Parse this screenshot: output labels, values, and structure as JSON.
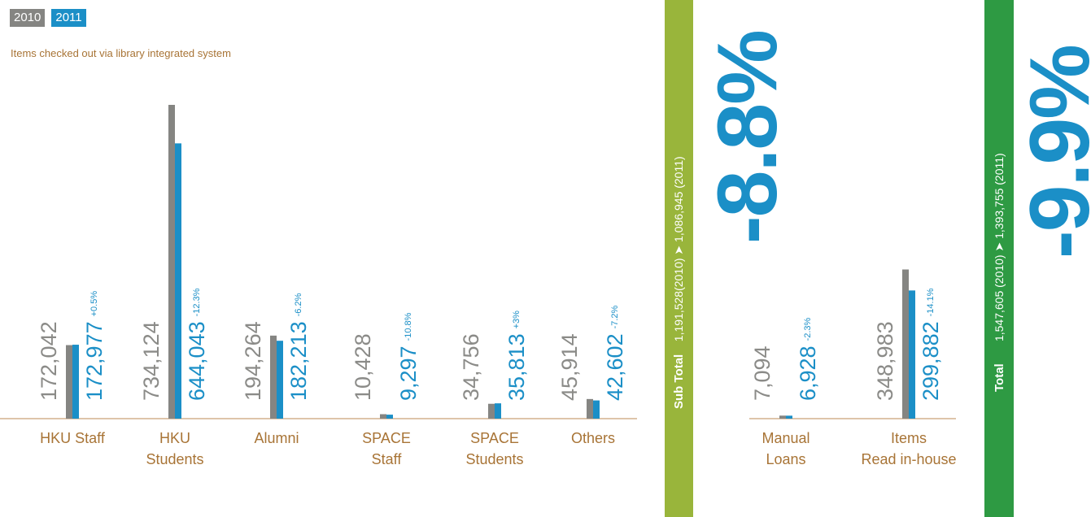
{
  "legend": {
    "y2010": "2010",
    "y2011": "2011"
  },
  "subtitle": "Items checked out via library integrated system",
  "colors": {
    "y2010": "#858582",
    "y2011": "#1b8fc7",
    "subtotal_strip": "#99b53b",
    "total_strip": "#2e9a43",
    "label": "#a87436"
  },
  "subtotal": {
    "label": "Sub Total",
    "text": "1,191,528(2010)  ➤  1,086,945 (2011)",
    "pct": "-8.8%"
  },
  "total": {
    "label": "Total",
    "text": "1,547,605 (2010)  ➤  1,393,755 (2011)",
    "pct": "-9.9%"
  },
  "chart_data": [
    {
      "type": "bar",
      "title": "Items checked out via library integrated system",
      "categories": [
        "HKU Staff",
        "HKU Students",
        "Alumni",
        "SPACE Staff",
        "SPACE Students",
        "Others"
      ],
      "category_lines": [
        [
          "HKU Staff"
        ],
        [
          "HKU",
          "Students"
        ],
        [
          "Alumni"
        ],
        [
          "SPACE",
          "Staff"
        ],
        [
          "SPACE",
          "Students"
        ],
        [
          "Others"
        ]
      ],
      "series": [
        {
          "name": "2010",
          "values": [
            172042,
            734124,
            194264,
            10428,
            34756,
            45914
          ],
          "labels": [
            "172,042",
            "734,124",
            "194,264",
            "10,428",
            "34,756",
            "45,914"
          ]
        },
        {
          "name": "2011",
          "values": [
            172977,
            644043,
            182213,
            9297,
            35813,
            42602
          ],
          "labels": [
            "172,977",
            "644,043",
            "182,213",
            "9,297",
            "35,813",
            "42,602"
          ]
        }
      ],
      "changes": [
        "+0.5%",
        "-12.3%",
        "-6.2%",
        "-10.8%",
        "+3%",
        "-7.2%"
      ]
    },
    {
      "type": "bar",
      "categories": [
        "Manual Loans",
        "Items Read in-house"
      ],
      "category_lines": [
        [
          "Manual",
          "Loans"
        ],
        [
          "Items",
          "Read in-house"
        ]
      ],
      "series": [
        {
          "name": "2010",
          "values": [
            7094,
            348983
          ],
          "labels": [
            "7,094",
            "348,983"
          ]
        },
        {
          "name": "2011",
          "values": [
            6928,
            299882
          ],
          "labels": [
            "6,928",
            "299,882"
          ]
        }
      ],
      "changes": [
        "-2.3%",
        "-14.1%"
      ]
    }
  ]
}
